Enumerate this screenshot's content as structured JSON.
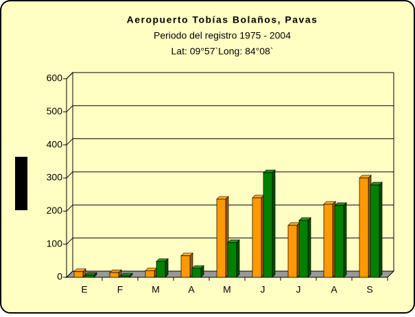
{
  "chart_data": {
    "type": "bar",
    "title": "Aeropuerto Tobías Bolaños, Pavas",
    "subtitle": "Periodo del registro 1975 - 2004",
    "annotation": "Lat: 09°57`Long: 84°08`",
    "categories": [
      "E",
      "F",
      "M",
      "A",
      "M",
      "J",
      "J",
      "A",
      "S"
    ],
    "series": [
      {
        "color": "#ff9900",
        "values": [
          17,
          14,
          20,
          65,
          236,
          240,
          157,
          221,
          300
        ]
      },
      {
        "color": "#008000",
        "values": [
          6,
          4,
          48,
          27,
          105,
          316,
          172,
          217,
          279
        ]
      }
    ],
    "ylim": [
      0,
      600
    ],
    "yticks": [
      0,
      100,
      200,
      300,
      400,
      500,
      600
    ],
    "grid": true
  }
}
